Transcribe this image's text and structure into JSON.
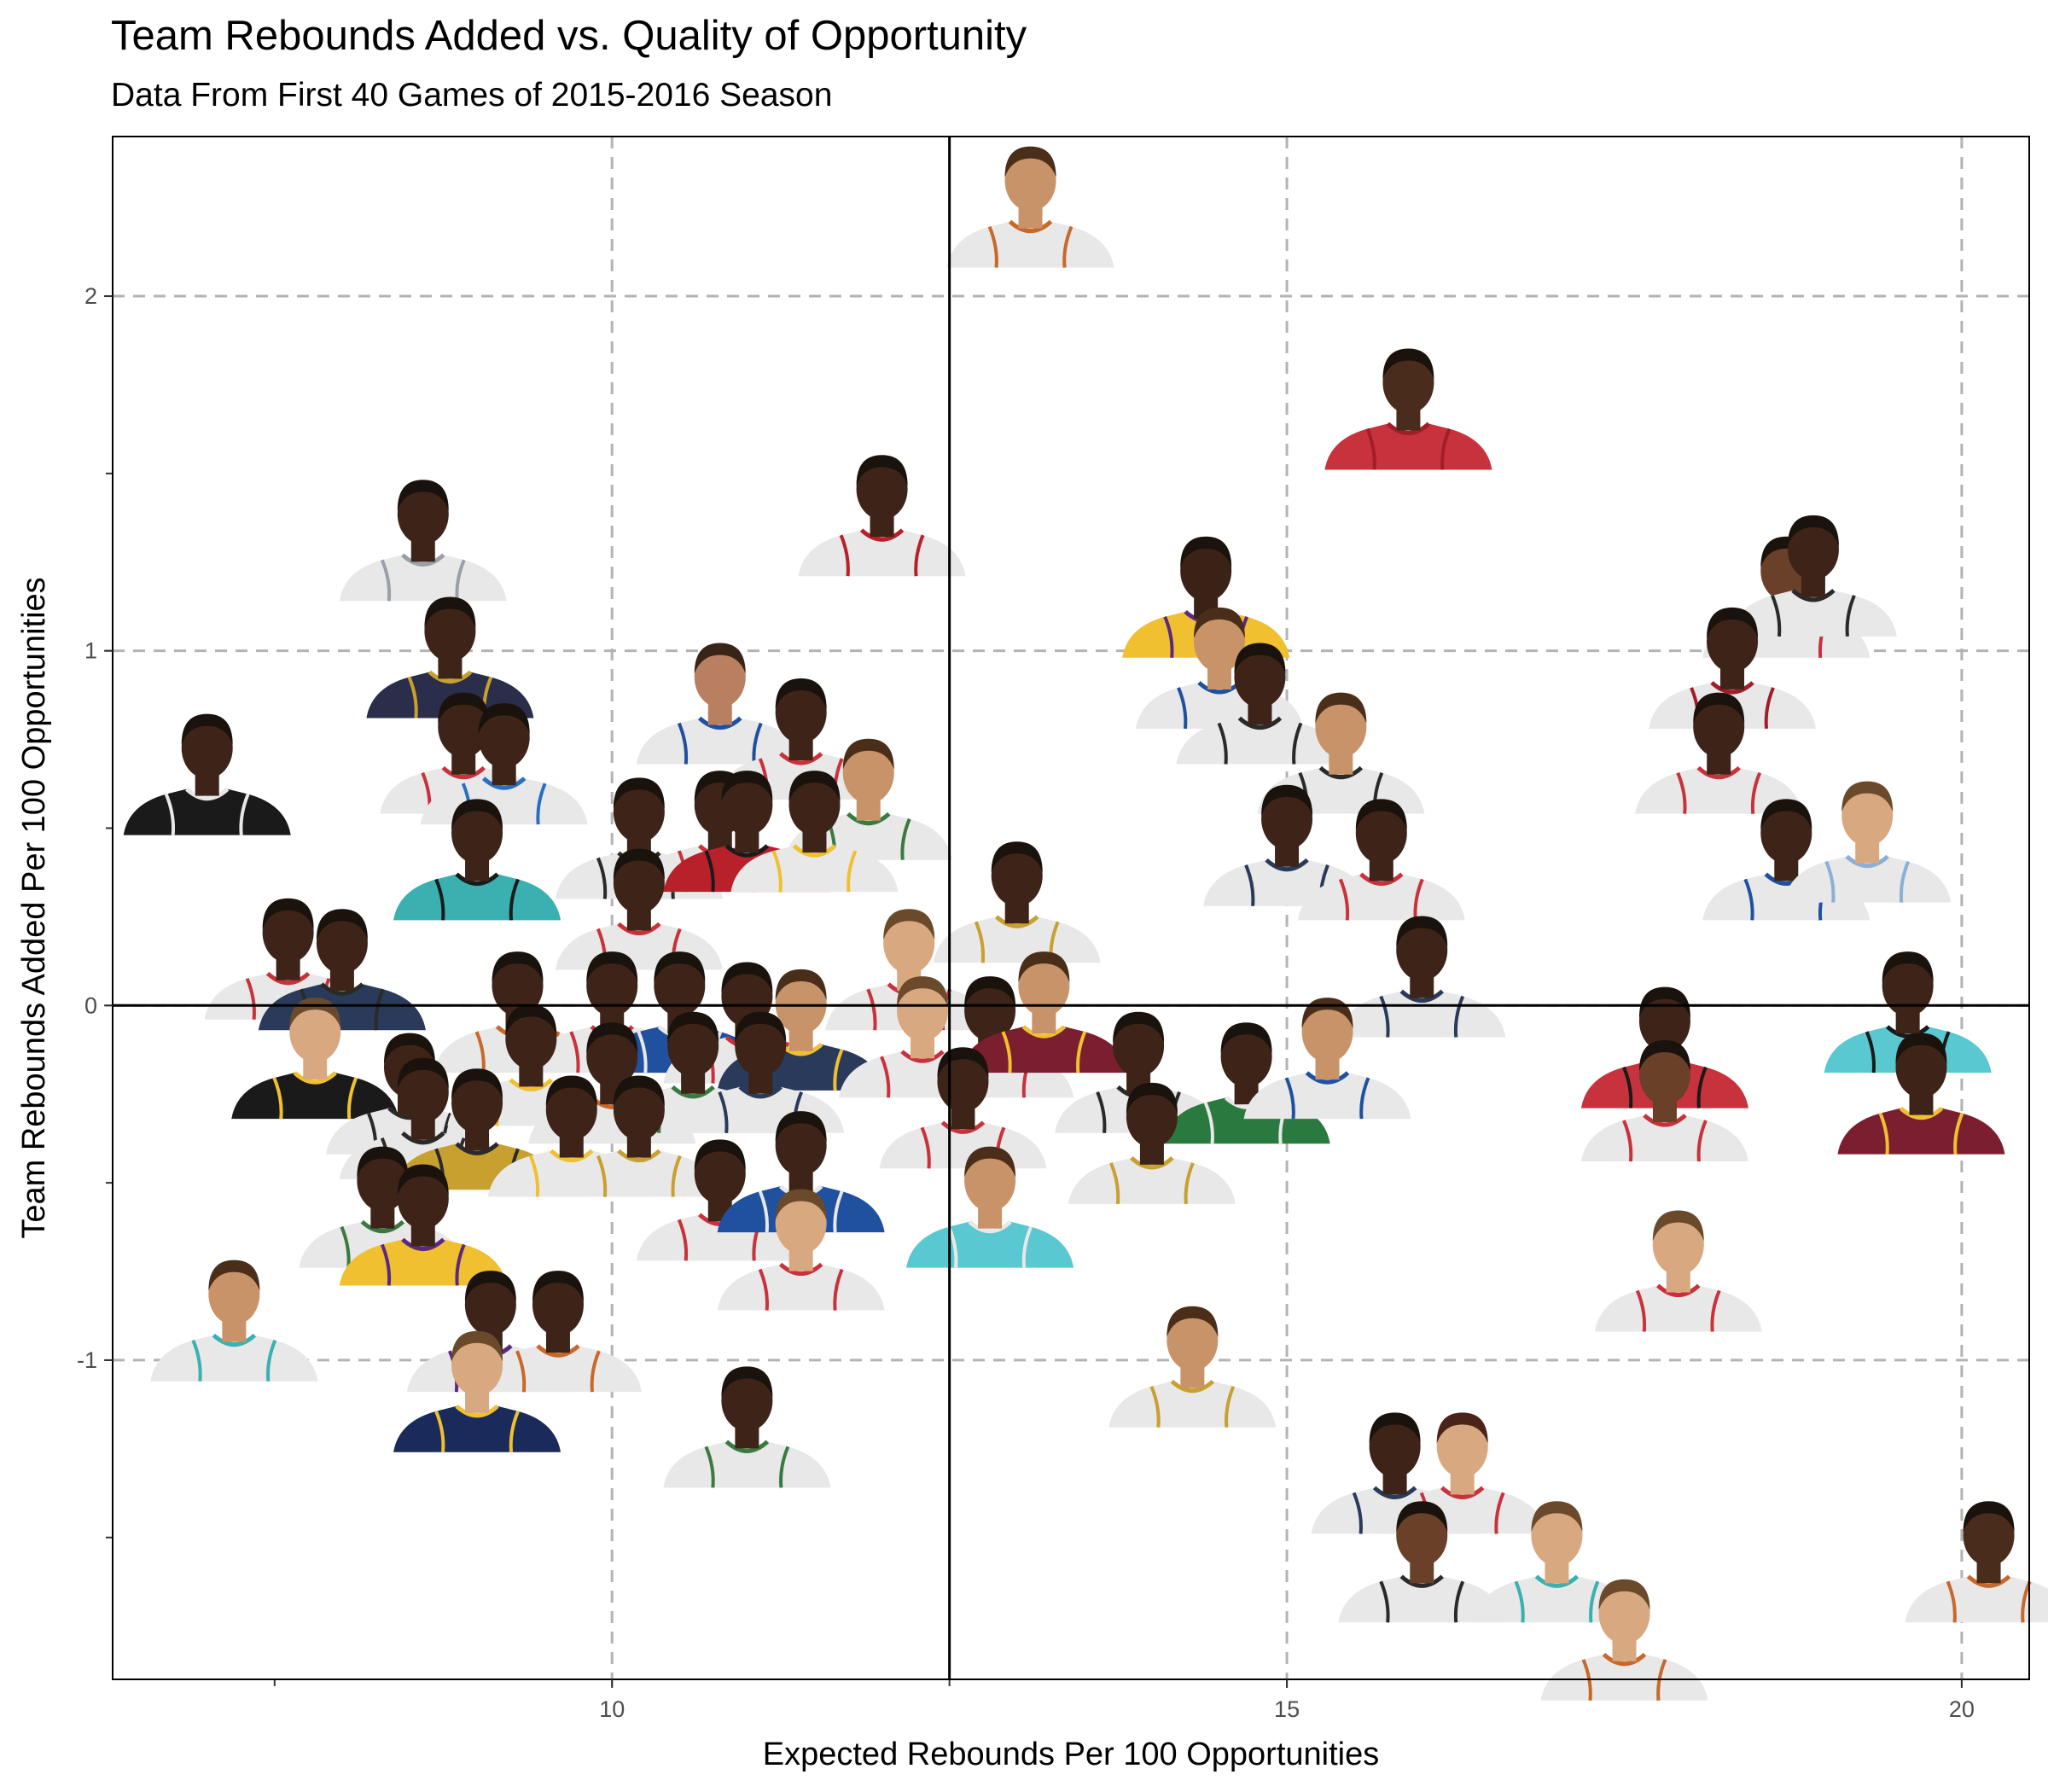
{
  "chart_data": {
    "type": "scatter",
    "title": "Team Rebounds Added vs. Quality of Opportunity",
    "subtitle": "Data From First 40 Games of 2015-2016 Season",
    "xlabel": "Expected Rebounds Per 100 Opportunities",
    "ylabel": "Team Rebounds Added Per 100 Opportunities",
    "xlim": [
      6.3,
      20.5
    ],
    "ylim": [
      -1.9,
      2.45
    ],
    "x_ticks": [
      {
        "value": 10,
        "label": "10"
      },
      {
        "value": 15,
        "label": "15"
      },
      {
        "value": 20,
        "label": "20"
      }
    ],
    "y_ticks": [
      {
        "value": -1,
        "label": "-1"
      },
      {
        "value": 0,
        "label": "0"
      },
      {
        "value": 1,
        "label": "1"
      },
      {
        "value": 2,
        "label": "2"
      }
    ],
    "grid": true,
    "reference_lines": {
      "x": 12.5,
      "y": 0
    },
    "marker": "player-headshot",
    "points": [
      {
        "x": 13.1,
        "y": 2.22,
        "jersey": "#e8e8e8",
        "skin": "#c9936a",
        "hair": "#4a2e1a",
        "trim": "#c8682a"
      },
      {
        "x": 15.9,
        "y": 1.65,
        "jersey": "#c8323c",
        "skin": "#4a2c1c",
        "hair": "#1a120c",
        "trim": "#a01e28"
      },
      {
        "x": 12.0,
        "y": 1.35,
        "jersey": "#e8e8e8",
        "skin": "#3e2418",
        "hair": "#1a120c",
        "trim": "#b8202a"
      },
      {
        "x": 8.6,
        "y": 1.28,
        "jersey": "#e8e8e8",
        "skin": "#3e2418",
        "hair": "#1a120c",
        "trim": "#9aa0a8"
      },
      {
        "x": 14.4,
        "y": 1.12,
        "jersey": "#f0c030",
        "skin": "#3a2216",
        "hair": "#1a120c",
        "trim": "#5a2a80"
      },
      {
        "x": 18.7,
        "y": 1.12,
        "jersey": "#e8e8e8",
        "skin": "#6a4028",
        "hair": "#1a120c",
        "trim": "#c83040"
      },
      {
        "x": 18.9,
        "y": 1.18,
        "jersey": "#e8e8e8",
        "skin": "#3e2418",
        "hair": "#1a120c",
        "trim": "#2a2a2a"
      },
      {
        "x": 8.8,
        "y": 0.95,
        "jersey": "#2a2e4a",
        "skin": "#3e2418",
        "hair": "#1a120c",
        "trim": "#c8a030"
      },
      {
        "x": 10.8,
        "y": 0.82,
        "jersey": "#e8e8e8",
        "skin": "#b88060",
        "hair": "#3a2418",
        "trim": "#2050a0"
      },
      {
        "x": 14.5,
        "y": 0.92,
        "jersey": "#e8e8e8",
        "skin": "#c9936a",
        "hair": "#4a2e1a",
        "trim": "#2050a0"
      },
      {
        "x": 14.8,
        "y": 0.82,
        "jersey": "#e8e8e8",
        "skin": "#3e2418",
        "hair": "#1a120c",
        "trim": "#2a2a2a"
      },
      {
        "x": 18.3,
        "y": 0.92,
        "jersey": "#e8e8e8",
        "skin": "#3e2418",
        "hair": "#1a120c",
        "trim": "#a01e28"
      },
      {
        "x": 7.0,
        "y": 0.62,
        "jersey": "#1a1a1a",
        "skin": "#3e2418",
        "hair": "#1a120c",
        "trim": "#e8e8e8"
      },
      {
        "x": 8.9,
        "y": 0.68,
        "jersey": "#e8e8e8",
        "skin": "#3e2418",
        "hair": "#1a120c",
        "trim": "#c8323c"
      },
      {
        "x": 9.2,
        "y": 0.65,
        "jersey": "#e8e8e8",
        "skin": "#3e2418",
        "hair": "#1a120c",
        "trim": "#2a70c0"
      },
      {
        "x": 11.4,
        "y": 0.72,
        "jersey": "#e8e8e8",
        "skin": "#3e2418",
        "hair": "#1a120c",
        "trim": "#c8323c"
      },
      {
        "x": 11.9,
        "y": 0.55,
        "jersey": "#e8e8e8",
        "skin": "#c9936a",
        "hair": "#4a2e1a",
        "trim": "#3a7a40"
      },
      {
        "x": 15.4,
        "y": 0.68,
        "jersey": "#e8e8e8",
        "skin": "#c9936a",
        "hair": "#4a2e1a",
        "trim": "#2a2a2a"
      },
      {
        "x": 18.2,
        "y": 0.68,
        "jersey": "#e8e8e8",
        "skin": "#3e2418",
        "hair": "#1a120c",
        "trim": "#c8323c"
      },
      {
        "x": 9.0,
        "y": 0.38,
        "jersey": "#3ab0b0",
        "skin": "#3e2418",
        "hair": "#1a120c",
        "trim": "#1a1a1a"
      },
      {
        "x": 10.2,
        "y": 0.44,
        "jersey": "#e8e8e8",
        "skin": "#3e2418",
        "hair": "#1a120c",
        "trim": "#2a2a2a"
      },
      {
        "x": 10.8,
        "y": 0.46,
        "jersey": "#e8e8e8",
        "skin": "#3e2418",
        "hair": "#1a120c",
        "trim": "#c8323c"
      },
      {
        "x": 11.0,
        "y": 0.46,
        "jersey": "#b8202a",
        "skin": "#3e2418",
        "hair": "#1a120c",
        "trim": "#1a1a1a"
      },
      {
        "x": 11.5,
        "y": 0.46,
        "jersey": "#e8e8e8",
        "skin": "#3e2418",
        "hair": "#1a120c",
        "trim": "#f0c030"
      },
      {
        "x": 15.0,
        "y": 0.42,
        "jersey": "#e8e8e8",
        "skin": "#3e2418",
        "hair": "#1a120c",
        "trim": "#2a3a5a"
      },
      {
        "x": 15.7,
        "y": 0.38,
        "jersey": "#e8e8e8",
        "skin": "#3e2418",
        "hair": "#1a120c",
        "trim": "#c8323c"
      },
      {
        "x": 18.7,
        "y": 0.38,
        "jersey": "#e8e8e8",
        "skin": "#3e2418",
        "hair": "#1a120c",
        "trim": "#2050a0"
      },
      {
        "x": 19.3,
        "y": 0.43,
        "jersey": "#e8e8e8",
        "skin": "#d8a880",
        "hair": "#6a4a2a",
        "trim": "#8ab0d8"
      },
      {
        "x": 10.2,
        "y": 0.24,
        "jersey": "#e8e8e8",
        "skin": "#3e2418",
        "hair": "#1a120c",
        "trim": "#c8323c"
      },
      {
        "x": 13.0,
        "y": 0.26,
        "jersey": "#e8e8e8",
        "skin": "#3e2418",
        "hair": "#1a120c",
        "trim": "#c8a030"
      },
      {
        "x": 7.6,
        "y": 0.1,
        "jersey": "#e8e8e8",
        "skin": "#3e2418",
        "hair": "#1a120c",
        "trim": "#c8323c"
      },
      {
        "x": 8.0,
        "y": 0.07,
        "jersey": "#2a3a5a",
        "skin": "#3e2418",
        "hair": "#1a120c",
        "trim": "#2a2a2a"
      },
      {
        "x": 12.2,
        "y": 0.07,
        "jersey": "#e8e8e8",
        "skin": "#d8a880",
        "hair": "#6a4a2a",
        "trim": "#c8323c"
      },
      {
        "x": 16.0,
        "y": 0.05,
        "jersey": "#e8e8e8",
        "skin": "#3e2418",
        "hair": "#1a120c",
        "trim": "#2a3a5a"
      },
      {
        "x": 9.3,
        "y": -0.05,
        "jersey": "#e8e8e8",
        "skin": "#3e2418",
        "hair": "#1a120c",
        "trim": "#c8682a"
      },
      {
        "x": 10.0,
        "y": -0.05,
        "jersey": "#e8e8e8",
        "skin": "#3e2418",
        "hair": "#1a120c",
        "trim": "#c8323c"
      },
      {
        "x": 10.5,
        "y": -0.05,
        "jersey": "#2050a0",
        "skin": "#3e2418",
        "hair": "#1a120c",
        "trim": "#e8e8e8"
      },
      {
        "x": 11.0,
        "y": -0.08,
        "jersey": "#e8e8e8",
        "skin": "#3e2418",
        "hair": "#1a120c",
        "trim": "#c8323c"
      },
      {
        "x": 11.4,
        "y": -0.1,
        "jersey": "#2a3a5a",
        "skin": "#c9936a",
        "hair": "#4a2e1a",
        "trim": "#f0c030"
      },
      {
        "x": 12.3,
        "y": -0.12,
        "jersey": "#e8e8e8",
        "skin": "#d8a880",
        "hair": "#6a4a2a",
        "trim": "#c8323c"
      },
      {
        "x": 12.8,
        "y": -0.12,
        "jersey": "#e8e8e8",
        "skin": "#3e2418",
        "hair": "#1a120c",
        "trim": "#c8323c"
      },
      {
        "x": 13.2,
        "y": -0.05,
        "jersey": "#7a1e30",
        "skin": "#c9936a",
        "hair": "#4a2e1a",
        "trim": "#f0c030"
      },
      {
        "x": 19.6,
        "y": -0.05,
        "jersey": "#5ac8d0",
        "skin": "#3e2418",
        "hair": "#1a120c",
        "trim": "#1a1a1a"
      },
      {
        "x": 7.8,
        "y": -0.18,
        "jersey": "#1a1a1a",
        "skin": "#d8a880",
        "hair": "#6a4a2a",
        "trim": "#f0c030"
      },
      {
        "x": 17.8,
        "y": -0.15,
        "jersey": "#c8323c",
        "skin": "#3e2418",
        "hair": "#1a120c",
        "trim": "#1a1a1a"
      },
      {
        "x": 8.5,
        "y": -0.28,
        "jersey": "#e8e8e8",
        "skin": "#3e2418",
        "hair": "#1a120c",
        "trim": "#2a2a2a"
      },
      {
        "x": 9.4,
        "y": -0.2,
        "jersey": "#e8e8e8",
        "skin": "#3e2418",
        "hair": "#1a120c",
        "trim": "#f0c030"
      },
      {
        "x": 10.0,
        "y": -0.25,
        "jersey": "#e8e8e8",
        "skin": "#3e2418",
        "hair": "#1a120c",
        "trim": "#c8682a"
      },
      {
        "x": 10.6,
        "y": -0.22,
        "jersey": "#e8e8e8",
        "skin": "#3e2418",
        "hair": "#1a120c",
        "trim": "#3a7a40"
      },
      {
        "x": 11.1,
        "y": -0.22,
        "jersey": "#e8e8e8",
        "skin": "#3e2418",
        "hair": "#1a120c",
        "trim": "#2a3a5a"
      },
      {
        "x": 13.9,
        "y": -0.22,
        "jersey": "#e8e8e8",
        "skin": "#3e2418",
        "hair": "#1a120c",
        "trim": "#2a2a2a"
      },
      {
        "x": 14.7,
        "y": -0.25,
        "jersey": "#2a7a40",
        "skin": "#3e2418",
        "hair": "#1a120c",
        "trim": "#e8e8e8"
      },
      {
        "x": 15.3,
        "y": -0.18,
        "jersey": "#e8e8e8",
        "skin": "#c9936a",
        "hair": "#4a2e1a",
        "trim": "#2050a0"
      },
      {
        "x": 17.8,
        "y": -0.3,
        "jersey": "#e8e8e8",
        "skin": "#6a4028",
        "hair": "#1a120c",
        "trim": "#c8323c"
      },
      {
        "x": 19.7,
        "y": -0.28,
        "jersey": "#7a1e30",
        "skin": "#3e2418",
        "hair": "#1a120c",
        "trim": "#f0c030"
      },
      {
        "x": 8.6,
        "y": -0.35,
        "jersey": "#e8e8e8",
        "skin": "#3e2418",
        "hair": "#1a120c",
        "trim": "#2a2a2a"
      },
      {
        "x": 9.0,
        "y": -0.38,
        "jersey": "#c8a030",
        "skin": "#3e2418",
        "hair": "#1a120c",
        "trim": "#2a2a2a"
      },
      {
        "x": 9.7,
        "y": -0.4,
        "jersey": "#e8e8e8",
        "skin": "#3e2418",
        "hair": "#1a120c",
        "trim": "#f0c030"
      },
      {
        "x": 10.2,
        "y": -0.4,
        "jersey": "#e8e8e8",
        "skin": "#3e2418",
        "hair": "#1a120c",
        "trim": "#c8a030"
      },
      {
        "x": 12.6,
        "y": -0.32,
        "jersey": "#e8e8e8",
        "skin": "#3e2418",
        "hair": "#1a120c",
        "trim": "#c8323c"
      },
      {
        "x": 14.0,
        "y": -0.42,
        "jersey": "#e8e8e8",
        "skin": "#3e2418",
        "hair": "#1a120c",
        "trim": "#c8a030"
      },
      {
        "x": 8.3,
        "y": -0.6,
        "jersey": "#e8e8e8",
        "skin": "#3e2418",
        "hair": "#1a120c",
        "trim": "#3a7a40"
      },
      {
        "x": 8.6,
        "y": -0.65,
        "jersey": "#f0c030",
        "skin": "#3e2418",
        "hair": "#1a120c",
        "trim": "#5a2a80"
      },
      {
        "x": 10.8,
        "y": -0.58,
        "jersey": "#e8e8e8",
        "skin": "#3e2418",
        "hair": "#1a120c",
        "trim": "#c8323c"
      },
      {
        "x": 11.4,
        "y": -0.5,
        "jersey": "#2050a0",
        "skin": "#3e2418",
        "hair": "#1a120c",
        "trim": "#e8e8e8"
      },
      {
        "x": 12.8,
        "y": -0.6,
        "jersey": "#5ac8d0",
        "skin": "#c9936a",
        "hair": "#4a2e1a",
        "trim": "#e8e8e8"
      },
      {
        "x": 11.4,
        "y": -0.72,
        "jersey": "#e8e8e8",
        "skin": "#d8a880",
        "hair": "#6a4a2a",
        "trim": "#c8323c"
      },
      {
        "x": 17.9,
        "y": -0.78,
        "jersey": "#e8e8e8",
        "skin": "#d8a880",
        "hair": "#6a4a2a",
        "trim": "#c8323c"
      },
      {
        "x": 7.2,
        "y": -0.92,
        "jersey": "#e8e8e8",
        "skin": "#c9936a",
        "hair": "#4a2e1a",
        "trim": "#3ab0b0"
      },
      {
        "x": 9.1,
        "y": -0.95,
        "jersey": "#e8e8e8",
        "skin": "#3e2418",
        "hair": "#1a120c",
        "trim": "#5a2a80"
      },
      {
        "x": 9.6,
        "y": -0.95,
        "jersey": "#e8e8e8",
        "skin": "#3e2418",
        "hair": "#1a120c",
        "trim": "#c8682a"
      },
      {
        "x": 9.0,
        "y": -1.12,
        "jersey": "#1a2a5a",
        "skin": "#d8a880",
        "hair": "#6a4a2a",
        "trim": "#f0c030"
      },
      {
        "x": 11.0,
        "y": -1.22,
        "jersey": "#e8e8e8",
        "skin": "#3e2418",
        "hair": "#1a120c",
        "trim": "#3a7a40"
      },
      {
        "x": 14.3,
        "y": -1.05,
        "jersey": "#e8e8e8",
        "skin": "#c9936a",
        "hair": "#4a2e1a",
        "trim": "#c8a030"
      },
      {
        "x": 15.8,
        "y": -1.35,
        "jersey": "#e8e8e8",
        "skin": "#3e2418",
        "hair": "#1a120c",
        "trim": "#2a3a5a"
      },
      {
        "x": 16.3,
        "y": -1.35,
        "jersey": "#e8e8e8",
        "skin": "#d8a880",
        "hair": "#4a2418",
        "trim": "#c8323c"
      },
      {
        "x": 16.0,
        "y": -1.6,
        "jersey": "#e8e8e8",
        "skin": "#6a4028",
        "hair": "#1a120c",
        "trim": "#2a2a2a"
      },
      {
        "x": 17.0,
        "y": -1.6,
        "jersey": "#e8e8e8",
        "skin": "#d8a880",
        "hair": "#6a4a2a",
        "trim": "#3ab0b0"
      },
      {
        "x": 17.5,
        "y": -1.82,
        "jersey": "#e8e8e8",
        "skin": "#d8a880",
        "hair": "#6a4a2a",
        "trim": "#c8682a"
      },
      {
        "x": 20.2,
        "y": -1.6,
        "jersey": "#e8e8e8",
        "skin": "#4a2c1c",
        "hair": "#1a120c",
        "trim": "#c8682a"
      }
    ]
  }
}
